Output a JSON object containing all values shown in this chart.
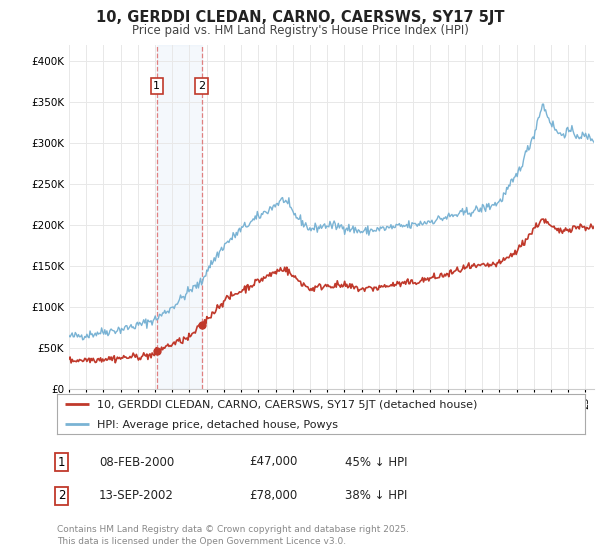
{
  "title": "10, GERDDI CLEDAN, CARNO, CAERSWS, SY17 5JT",
  "subtitle": "Price paid vs. HM Land Registry's House Price Index (HPI)",
  "ylim": [
    0,
    420000
  ],
  "yticks": [
    0,
    50000,
    100000,
    150000,
    200000,
    250000,
    300000,
    350000,
    400000
  ],
  "hpi_color": "#7ab3d4",
  "price_color": "#c0392b",
  "marker_color": "#c0392b",
  "vline_color": "#e08080",
  "background_color": "#ffffff",
  "grid_color": "#e8e8e8",
  "legend_label_price": "10, GERDDI CLEDAN, CARNO, CAERSWS, SY17 5JT (detached house)",
  "legend_label_hpi": "HPI: Average price, detached house, Powys",
  "annotation1_date": "08-FEB-2000",
  "annotation1_price": "£47,000",
  "annotation1_pct": "45% ↓ HPI",
  "annotation2_date": "13-SEP-2002",
  "annotation2_price": "£78,000",
  "annotation2_pct": "38% ↓ HPI",
  "footer": "Contains HM Land Registry data © Crown copyright and database right 2025.\nThis data is licensed under the Open Government Licence v3.0.",
  "sale1_year": 2000.1,
  "sale1_value": 47000,
  "sale2_year": 2002.7,
  "sale2_value": 78000,
  "xmin": 1995,
  "xmax": 2025.5
}
